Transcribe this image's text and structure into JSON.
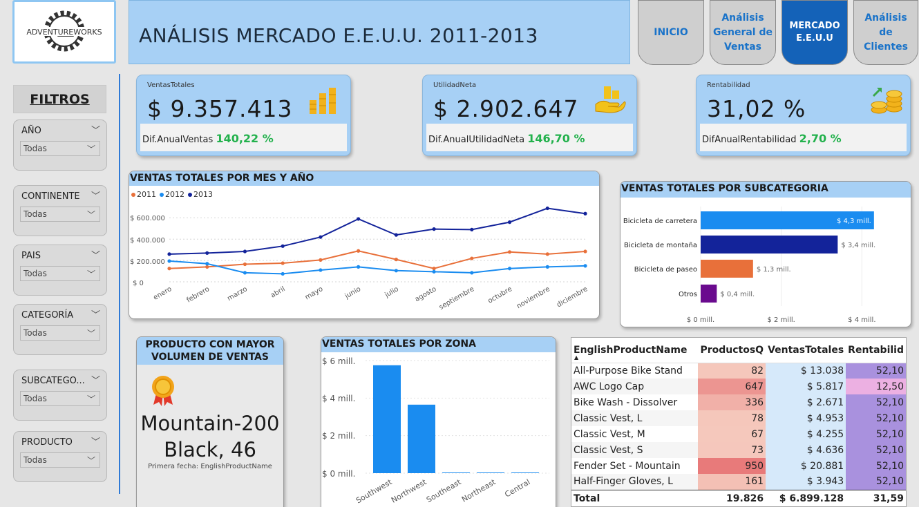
{
  "logo": {
    "text": "ADVENTUREWORKS"
  },
  "title": "ANÁLISIS MERCADO E.E.U.U.  2011-2013",
  "nav": [
    {
      "label": "INICIO"
    },
    {
      "label": "Análisis General de Ventas"
    },
    {
      "label": "MERCADO E.E.U.U"
    },
    {
      "label": "Análisis de Clientes"
    }
  ],
  "filters": {
    "title": "FILTROS",
    "items": [
      {
        "label": "AÑO",
        "value": "Todas"
      },
      {
        "label": "CONTINENTE",
        "value": "Todas"
      },
      {
        "label": "PAIS",
        "value": "Todas"
      },
      {
        "label": "CATEGORÍA",
        "value": "Todas"
      },
      {
        "label": "SUBCATEGO...",
        "value": "Todas"
      },
      {
        "label": "PRODUCTO",
        "value": "Todas"
      }
    ]
  },
  "kpis": [
    {
      "label": "VentasTotales",
      "value": "$ 9.357.413",
      "diff_label": "Dif.AnualVentas",
      "diff_value": "140,22 %",
      "icon": "bar-coins-icon"
    },
    {
      "label": "UtilidadNeta",
      "value": "$ 2.902.647",
      "diff_label": "Dif.AnualUtilidadNeta",
      "diff_value": "146,70 %",
      "icon": "hand-money-icon"
    },
    {
      "label": "Rentabilidad",
      "value": "31,02 %",
      "diff_label": "DifAnualRentabilidad",
      "diff_value": "2,70 %",
      "icon": "coins-growth-icon"
    }
  ],
  "colors": {
    "y2011": "#e8703a",
    "y2012": "#1a8cf0",
    "y2013": "#13239a",
    "positive": "#22b14c"
  },
  "charts": {
    "line": {
      "title": "VENTAS TOTALES POR MES Y AÑO",
      "legend": [
        "2011",
        "2012",
        "2013"
      ],
      "yticks": [
        "$ 600.000",
        "$ 400.000",
        "$ 200.000",
        "$ 0"
      ]
    },
    "subcat": {
      "title": "VENTAS TOTALES POR SUBCATEGORIA",
      "value_labels": [
        "$ 4,3 mill.",
        "$ 3,4 mill.",
        "$ 1,3 mill.",
        "$ 0,4 mill."
      ],
      "xticks": [
        "$ 0 mill.",
        "$ 2 mill.",
        "$ 4 mill."
      ]
    },
    "zona": {
      "title": "VENTAS TOTALES POR ZONA",
      "yticks": [
        "$ 6 mill.",
        "$ 4 mill.",
        "$ 2 mill.",
        "$ 0 mill."
      ]
    }
  },
  "chart_data": [
    {
      "type": "line",
      "title": "VENTAS TOTALES POR MES Y AÑO",
      "categories": [
        "enero",
        "febrero",
        "marzo",
        "abril",
        "mayo",
        "junio",
        "julio",
        "agosto",
        "septiembre",
        "octubre",
        "noviembre",
        "diciembre"
      ],
      "series": [
        {
          "name": "2011",
          "values": [
            125000,
            140000,
            165000,
            175000,
            205000,
            290000,
            210000,
            125000,
            220000,
            280000,
            260000,
            285000
          ]
        },
        {
          "name": "2012",
          "values": [
            195000,
            170000,
            85000,
            75000,
            110000,
            140000,
            105000,
            95000,
            85000,
            125000,
            140000,
            150000
          ]
        },
        {
          "name": "2013",
          "values": [
            260000,
            270000,
            285000,
            335000,
            420000,
            590000,
            440000,
            495000,
            490000,
            560000,
            690000,
            640000
          ]
        }
      ],
      "ylim": [
        0,
        700000
      ]
    },
    {
      "type": "bar",
      "title": "VENTAS TOTALES POR SUBCATEGORIA",
      "orientation": "horizontal",
      "categories": [
        "Bicicleta de carretera",
        "Bicicleta de montaña",
        "Bicicleta de paseo",
        "Otros"
      ],
      "values": [
        4.3,
        3.4,
        1.3,
        0.4
      ],
      "colors": [
        "#1a8cf0",
        "#13239a",
        "#e8703a",
        "#6a0a8e"
      ],
      "xlim": [
        0,
        4.8
      ]
    },
    {
      "type": "bar",
      "title": "VENTAS TOTALES POR ZONA",
      "categories": [
        "Southwest",
        "Northwest",
        "Southeast",
        "Northeast",
        "Central"
      ],
      "values": [
        5.75,
        3.65,
        0.02,
        0.02,
        0.02
      ],
      "ylim": [
        0,
        6.3
      ]
    }
  ],
  "top_product": {
    "title": "PRODUCTO CON MAYOR VOLUMEN DE VENTAS",
    "name": "Mountain-200 Black, 46",
    "caption": "Primera fecha: EnglishProductName"
  },
  "table": {
    "columns": [
      "EnglishProductName",
      "ProductosQ",
      "VentasTotales",
      "Rentabilid"
    ],
    "rows": [
      [
        "All-Purpose Bike Stand",
        "82",
        "$ 13.038",
        "52,10"
      ],
      [
        "AWC Logo Cap",
        "647",
        "$ 5.817",
        "12,50"
      ],
      [
        "Bike Wash - Dissolver",
        "336",
        "$ 2.671",
        "52,10"
      ],
      [
        "Classic Vest, L",
        "78",
        "$ 4.953",
        "52,10"
      ],
      [
        "Classic Vest, M",
        "67",
        "$ 4.255",
        "52,10"
      ],
      [
        "Classic Vest, S",
        "73",
        "$ 4.636",
        "52,10"
      ],
      [
        "Fender Set - Mountain",
        "950",
        "$ 20.881",
        "52,10"
      ],
      [
        "Half-Finger Gloves, L",
        "161",
        "$ 3.943",
        "52,10"
      ]
    ],
    "qty_values": [
      82,
      647,
      336,
      78,
      67,
      73,
      950,
      161
    ],
    "total": [
      "Total",
      "19.826",
      "$ 6.899.128",
      "31,59"
    ]
  }
}
